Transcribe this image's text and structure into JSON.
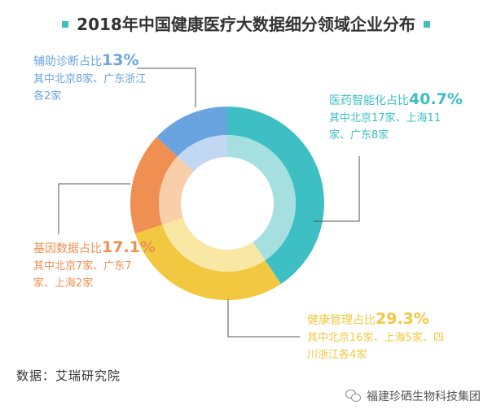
{
  "chart_data": {
    "type": "pie",
    "title": "2018年中国健康医疗大数据细分领域企业分布",
    "slices": [
      {
        "label": "医药智能化占比",
        "value": 40.7,
        "pct_text": "40.7%",
        "detail": "其中北京17家、上海11家、广东8家",
        "color": "#3dbfc4",
        "inner_color": "#a5dfe0"
      },
      {
        "label": "健康管理占比",
        "value": 29.3,
        "pct_text": "29.3%",
        "detail": "其中北京16家、上海5家、四川浙江各4家",
        "color": "#f2c840",
        "inner_color": "#f9e7a4"
      },
      {
        "label": "基因数据占比",
        "value": 17.1,
        "pct_text": "17.1%",
        "detail": "其中北京7家、广东7家、上海2家",
        "color": "#f08f52",
        "inner_color": "#f9cfa9"
      },
      {
        "label": "辅助诊断占比",
        "value": 13,
        "pct_text": "13%",
        "detail": "其中北京8家、广东浙江各2家",
        "color": "#6aa4e0",
        "inner_color": "#c2d8f2"
      }
    ],
    "legend": "none"
  },
  "colors": {
    "title_marker": "#3dbfc4",
    "leader_line": "#555555"
  },
  "source_text": "数据：艾瑞研究院",
  "watermark_text": "福建珍硒生物科技集团"
}
